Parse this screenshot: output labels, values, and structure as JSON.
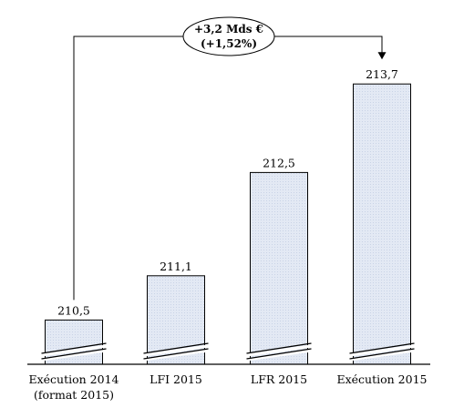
{
  "chart_data": {
    "type": "bar",
    "categories": [
      "Exécution 2014\n(format 2015)",
      "LFI 2015",
      "LFR 2015",
      "Exécution 2015"
    ],
    "values": [
      210.5,
      211.1,
      212.5,
      213.7
    ],
    "value_labels": [
      "210,5",
      "211,1",
      "212,5",
      "213,7"
    ],
    "axis_break": true,
    "grid": false,
    "legend": "none",
    "colors": {
      "bar_fill": "#e3e9f4",
      "bar_stroke": "#000000",
      "annotation_fill": "#ffffff"
    },
    "annotation": {
      "line1": "+3,2 Mds €",
      "line2": "(+1,52%)",
      "from_category": 0,
      "to_category": 3
    }
  }
}
